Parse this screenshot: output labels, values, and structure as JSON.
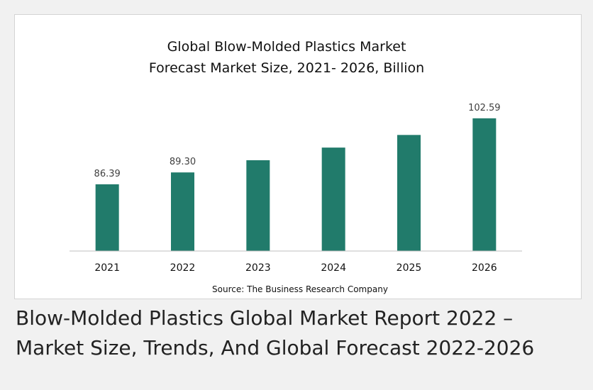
{
  "chart_data": {
    "type": "bar",
    "title_lines": [
      "Global Blow-Molded Plastics Market",
      "Forecast Market Size, 2021- 2026, Billion"
    ],
    "categories": [
      "2021",
      "2022",
      "2023",
      "2024",
      "2025",
      "2026"
    ],
    "values": [
      86.39,
      89.3,
      92.3,
      95.4,
      98.5,
      102.59
    ],
    "data_labels": [
      "86.39",
      "89.30",
      "",
      "",
      "",
      "102.59"
    ],
    "ylim": [
      70,
      105
    ],
    "bar_color": "#217b6b",
    "grid": false,
    "source": "Source: The Business Research Company"
  },
  "caption": {
    "line1": "Blow-Molded Plastics Global Market Report 2022 –",
    "line2": "Market Size, Trends, And Global Forecast 2022-2026"
  }
}
